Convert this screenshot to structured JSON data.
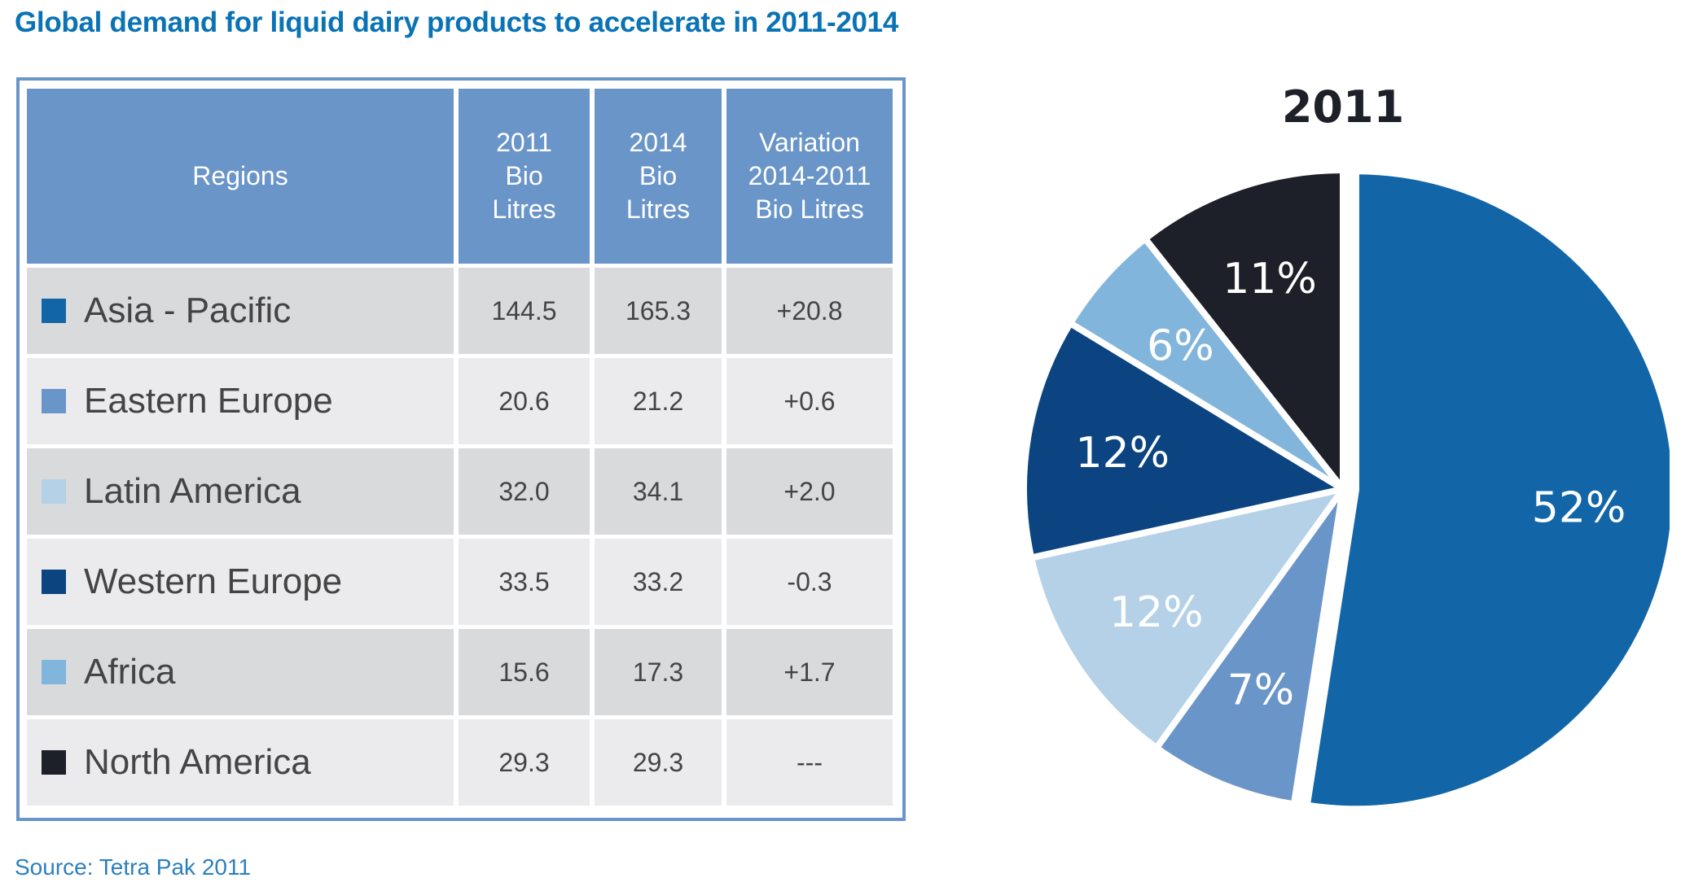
{
  "title": "Global demand for liquid dairy products to accelerate in 2011-2014",
  "table": {
    "headers": [
      "Regions",
      "2011\nBio\nLitres",
      "2014\nBio\nLitres",
      "Variation\n2014-2011\nBio Litres"
    ],
    "rows": [
      {
        "region": "Asia - Pacific",
        "color": "#1266a8",
        "v2011": "144.5",
        "v2014": "165.3",
        "variation": "+20.8"
      },
      {
        "region": "Eastern Europe",
        "color": "#6a95c8",
        "v2011": "20.6",
        "v2014": "21.2",
        "variation": "+0.6"
      },
      {
        "region": "Latin America",
        "color": "#b4d1e7",
        "v2011": "32.0",
        "v2014": "34.1",
        "variation": "+2.0"
      },
      {
        "region": "Western Europe",
        "color": "#0c4482",
        "v2011": "33.5",
        "v2014": "33.2",
        "variation": "-0.3"
      },
      {
        "region": "Africa",
        "color": "#82b5dc",
        "v2011": "15.6",
        "v2014": "17.3",
        "variation": "+1.7"
      },
      {
        "region": "North America",
        "color": "#1e2029",
        "v2011": "29.3",
        "v2014": "29.3",
        "variation": "---"
      }
    ]
  },
  "source": "Source: Tetra Pak 2011",
  "chart_data": {
    "type": "pie",
    "title": "2011",
    "categories": [
      "Asia - Pacific",
      "Eastern Europe",
      "Latin America",
      "Western Europe",
      "Africa",
      "North America"
    ],
    "values": [
      144.5,
      20.6,
      32.0,
      33.5,
      15.6,
      29.3
    ],
    "labels": [
      "52%",
      "7%",
      "12%",
      "12%",
      "6%",
      "11%"
    ],
    "colors": [
      "#1266a8",
      "#6a95c8",
      "#b4d1e7",
      "#0c4482",
      "#82b5dc",
      "#1e2029"
    ],
    "start": "12 o'clock, clockwise",
    "exploded": "Asia - Pacific"
  }
}
